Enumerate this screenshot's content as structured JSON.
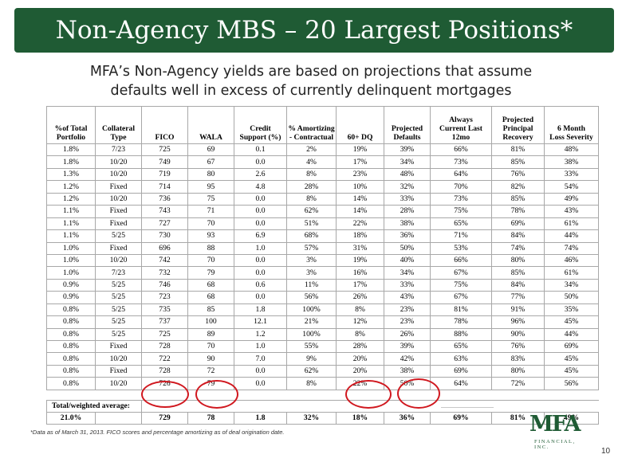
{
  "title": "Non-Agency MBS – 20 Largest Positions*",
  "subtitle_line1": "MFA’s Non-Agency yields are based on projections that assume",
  "subtitle_line2": "defaults well in excess of currently delinquent mortgages",
  "columns": [
    [
      "%of Total",
      "Portfolio"
    ],
    [
      "Collateral",
      "Type"
    ],
    [
      "",
      "FICO"
    ],
    [
      "",
      "WALA"
    ],
    [
      "Credit",
      "Support (%)"
    ],
    [
      "% Amortizing",
      "- Contractual"
    ],
    [
      "",
      "60+ DQ"
    ],
    [
      "Projected",
      "Defaults"
    ],
    [
      "Always",
      "Current Last",
      "12mo"
    ],
    [
      "Projected",
      "Principal",
      "Recovery"
    ],
    [
      "6 Month",
      "Loss Severity"
    ]
  ],
  "rows": [
    [
      "1.8%",
      "7/23",
      "725",
      "69",
      "0.1",
      "2%",
      "19%",
      "39%",
      "66%",
      "81%",
      "48%"
    ],
    [
      "1.8%",
      "10/20",
      "749",
      "67",
      "0.0",
      "4%",
      "17%",
      "34%",
      "73%",
      "85%",
      "38%"
    ],
    [
      "1.3%",
      "10/20",
      "719",
      "80",
      "2.6",
      "8%",
      "23%",
      "48%",
      "64%",
      "76%",
      "33%"
    ],
    [
      "1.2%",
      "Fixed",
      "714",
      "95",
      "4.8",
      "28%",
      "10%",
      "32%",
      "70%",
      "82%",
      "54%"
    ],
    [
      "1.2%",
      "10/20",
      "736",
      "75",
      "0.0",
      "8%",
      "14%",
      "33%",
      "73%",
      "85%",
      "49%"
    ],
    [
      "1.1%",
      "Fixed",
      "743",
      "71",
      "0.0",
      "62%",
      "14%",
      "28%",
      "75%",
      "78%",
      "43%"
    ],
    [
      "1.1%",
      "Fixed",
      "727",
      "70",
      "0.0",
      "51%",
      "22%",
      "38%",
      "65%",
      "69%",
      "61%"
    ],
    [
      "1.1%",
      "5/25",
      "730",
      "93",
      "6.9",
      "68%",
      "18%",
      "36%",
      "71%",
      "84%",
      "44%"
    ],
    [
      "1.0%",
      "Fixed",
      "696",
      "88",
      "1.0",
      "57%",
      "31%",
      "50%",
      "53%",
      "74%",
      "74%"
    ],
    [
      "1.0%",
      "10/20",
      "742",
      "70",
      "0.0",
      "3%",
      "19%",
      "40%",
      "66%",
      "80%",
      "46%"
    ],
    [
      "1.0%",
      "7/23",
      "732",
      "79",
      "0.0",
      "3%",
      "16%",
      "34%",
      "67%",
      "85%",
      "61%"
    ],
    [
      "0.9%",
      "5/25",
      "746",
      "68",
      "0.6",
      "11%",
      "17%",
      "33%",
      "75%",
      "84%",
      "34%"
    ],
    [
      "0.9%",
      "5/25",
      "723",
      "68",
      "0.0",
      "56%",
      "26%",
      "43%",
      "67%",
      "77%",
      "50%"
    ],
    [
      "0.8%",
      "5/25",
      "735",
      "85",
      "1.8",
      "100%",
      "8%",
      "23%",
      "81%",
      "91%",
      "35%"
    ],
    [
      "0.8%",
      "5/25",
      "737",
      "100",
      "12.1",
      "21%",
      "12%",
      "23%",
      "78%",
      "96%",
      "45%"
    ],
    [
      "0.8%",
      "5/25",
      "725",
      "89",
      "1.2",
      "100%",
      "8%",
      "26%",
      "88%",
      "90%",
      "44%"
    ],
    [
      "0.8%",
      "Fixed",
      "728",
      "70",
      "1.0",
      "55%",
      "28%",
      "39%",
      "65%",
      "76%",
      "69%"
    ],
    [
      "0.8%",
      "10/20",
      "722",
      "90",
      "7.0",
      "9%",
      "20%",
      "42%",
      "63%",
      "83%",
      "45%"
    ],
    [
      "0.8%",
      "Fixed",
      "728",
      "72",
      "0.0",
      "62%",
      "20%",
      "38%",
      "69%",
      "80%",
      "45%"
    ],
    [
      "0.8%",
      "10/20",
      "726",
      "79",
      "0.0",
      "8%",
      "22%",
      "50%",
      "64%",
      "72%",
      "56%"
    ]
  ],
  "total_label": "Total/weighted average:",
  "totals": [
    "21.0%",
    "",
    "729",
    "78",
    "1.8",
    "32%",
    "18%",
    "36%",
    "69%",
    "81%",
    "49%"
  ],
  "highlight_color": "#d0181f",
  "footnote": "*Data as of March 31, 2013. FICO scores and percentage amortizing as of deal origination date.",
  "logo": {
    "main": "MFA",
    "sub": "FINANCIAL, INC."
  },
  "page_number": "10"
}
